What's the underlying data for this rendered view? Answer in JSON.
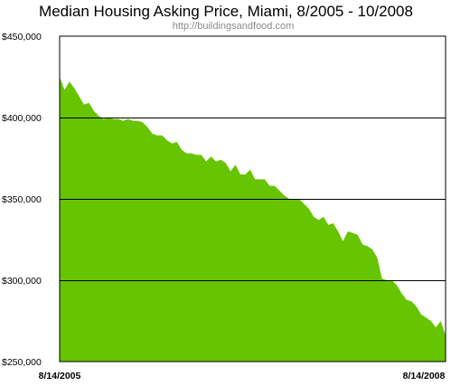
{
  "chart_data": {
    "type": "area",
    "title": "Median Housing Asking Price, Miami, 8/2005 - 10/2008",
    "subtitle": "http://buildingsandfood.com",
    "xlabel": "",
    "ylabel": "",
    "ylim": [
      250000,
      450000
    ],
    "yticks": [
      {
        "value": 450000,
        "label": "$450,000"
      },
      {
        "value": 400000,
        "label": "$400,000"
      },
      {
        "value": 350000,
        "label": "$350,000"
      },
      {
        "value": 300000,
        "label": "$300,000"
      },
      {
        "value": 250000,
        "label": "$250,000"
      }
    ],
    "xticks": [
      "8/14/2005",
      "8/14/2008"
    ],
    "grid": true,
    "fill_color": "#66c400",
    "series": [
      {
        "values": [
          425000,
          417000,
          422000,
          418000,
          413000,
          408000,
          409000,
          404000,
          401000,
          399000,
          400000,
          399000,
          399000,
          398000,
          399000,
          398000,
          398000,
          397000,
          394000,
          390000,
          389000,
          389000,
          386000,
          384000,
          385000,
          380000,
          378000,
          378000,
          377000,
          377000,
          373000,
          376000,
          373000,
          374000,
          372000,
          367000,
          371000,
          365000,
          365000,
          368000,
          362000,
          362000,
          362000,
          358000,
          358000,
          355000,
          352000,
          350000,
          350000,
          350000,
          347000,
          344000,
          339000,
          337000,
          339000,
          334000,
          335000,
          330000,
          324000,
          330000,
          329000,
          328000,
          322000,
          321000,
          319000,
          314000,
          301000,
          300000,
          300000,
          297000,
          292000,
          288000,
          287000,
          284000,
          279000,
          277000,
          275000,
          271000,
          275000,
          266000
        ]
      }
    ]
  }
}
